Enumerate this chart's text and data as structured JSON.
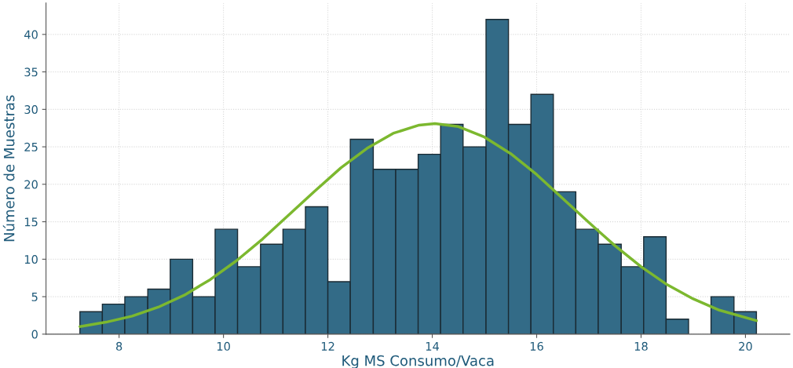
{
  "chart_data": {
    "type": "histogram",
    "xlabel": "Kg MS Consumo/Vaca",
    "ylabel": "Número de Muestras",
    "bins": [
      7.25,
      7.68,
      8.11,
      8.55,
      8.98,
      9.41,
      9.84,
      10.27,
      10.71,
      11.14,
      11.57,
      12.0,
      12.43,
      12.87,
      13.3,
      13.73,
      14.16,
      14.59,
      15.03,
      15.46,
      15.89,
      16.32,
      16.75,
      17.18,
      17.62,
      18.05,
      18.48,
      18.91,
      19.34,
      19.78,
      20.21
    ],
    "values": [
      3,
      4,
      5,
      6,
      10,
      5,
      14,
      9,
      12,
      14,
      17,
      7,
      26,
      22,
      22,
      24,
      28,
      25,
      42,
      28,
      32,
      19,
      14,
      12,
      9,
      13,
      2,
      0,
      5,
      3
    ],
    "color": "#336b87",
    "series": [
      {
        "type": "line",
        "color": "#7cb82f",
        "x": [
          7.25,
          7.75,
          8.25,
          8.75,
          9.25,
          9.75,
          10.25,
          10.75,
          11.25,
          11.75,
          12.25,
          12.75,
          13.25,
          13.75,
          14.05,
          14.5,
          15.0,
          15.5,
          16.0,
          16.5,
          17.0,
          17.5,
          18.0,
          18.5,
          19.0,
          19.5,
          20.21
        ],
        "values": [
          1.0,
          1.6,
          2.4,
          3.6,
          5.2,
          7.3,
          9.8,
          12.7,
          15.9,
          19.1,
          22.2,
          24.8,
          26.8,
          27.9,
          28.1,
          27.7,
          26.3,
          24.1,
          21.3,
          18.1,
          14.9,
          11.8,
          9.0,
          6.6,
          4.7,
          3.2,
          1.8
        ]
      }
    ],
    "xlim": [
      6.6,
      20.85
    ],
    "ylim": [
      0,
      44.2
    ],
    "xticks": [
      8,
      10,
      12,
      14,
      16,
      18,
      20
    ],
    "yticks": [
      0,
      5,
      10,
      15,
      20,
      25,
      30,
      35,
      40
    ],
    "grid": true
  }
}
